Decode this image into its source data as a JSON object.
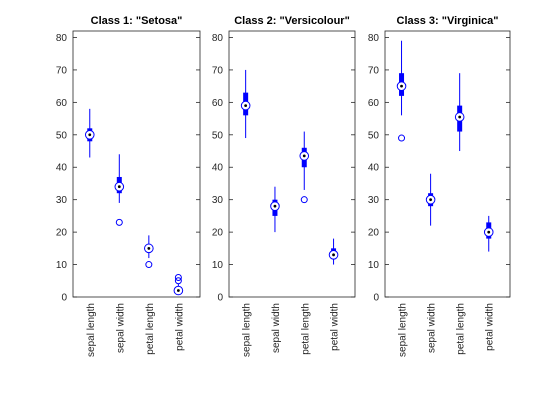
{
  "chart_data": [
    {
      "type": "box",
      "title": "Class 1: \"Setosa\"",
      "categories": [
        "sepal length",
        "sepal width",
        "petal length",
        "petal width"
      ],
      "ylim": [
        0,
        82
      ],
      "yticks": [
        0,
        10,
        20,
        30,
        40,
        50,
        60,
        70,
        80
      ],
      "grid": false,
      "boxes": [
        {
          "median": 50,
          "q1": 48,
          "q3": 52,
          "whisker_low": 43,
          "whisker_high": 58,
          "outliers": []
        },
        {
          "median": 34,
          "q1": 32,
          "q3": 37,
          "whisker_low": 29,
          "whisker_high": 44,
          "outliers": [
            23
          ]
        },
        {
          "median": 15,
          "q1": 14,
          "q3": 16,
          "whisker_low": 12,
          "whisker_high": 19,
          "outliers": [
            10
          ]
        },
        {
          "median": 2,
          "q1": 2,
          "q3": 3,
          "whisker_low": 1,
          "whisker_high": 4,
          "outliers": [
            5,
            6
          ]
        }
      ]
    },
    {
      "type": "box",
      "title": "Class 2: \"Versicolour\"",
      "categories": [
        "sepal length",
        "sepal width",
        "petal length",
        "petal width"
      ],
      "ylim": [
        0,
        82
      ],
      "yticks": [
        0,
        10,
        20,
        30,
        40,
        50,
        60,
        70,
        80
      ],
      "grid": false,
      "boxes": [
        {
          "median": 59,
          "q1": 56,
          "q3": 63,
          "whisker_low": 49,
          "whisker_high": 70,
          "outliers": []
        },
        {
          "median": 28,
          "q1": 25,
          "q3": 30,
          "whisker_low": 20,
          "whisker_high": 34,
          "outliers": []
        },
        {
          "median": 43.5,
          "q1": 40,
          "q3": 46,
          "whisker_low": 33,
          "whisker_high": 51,
          "outliers": [
            30
          ]
        },
        {
          "median": 13,
          "q1": 12,
          "q3": 15,
          "whisker_low": 10,
          "whisker_high": 18,
          "outliers": []
        }
      ]
    },
    {
      "type": "box",
      "title": "Class 3: \"Virginica\"",
      "categories": [
        "sepal length",
        "sepal width",
        "petal length",
        "petal width"
      ],
      "ylim": [
        0,
        82
      ],
      "yticks": [
        0,
        10,
        20,
        30,
        40,
        50,
        60,
        70,
        80
      ],
      "grid": false,
      "boxes": [
        {
          "median": 65,
          "q1": 62,
          "q3": 69,
          "whisker_low": 56,
          "whisker_high": 79,
          "outliers": [
            49
          ]
        },
        {
          "median": 30,
          "q1": 28,
          "q3": 32,
          "whisker_low": 22,
          "whisker_high": 38,
          "outliers": []
        },
        {
          "median": 55.5,
          "q1": 51,
          "q3": 59,
          "whisker_low": 45,
          "whisker_high": 69,
          "outliers": []
        },
        {
          "median": 20,
          "q1": 18,
          "q3": 23,
          "whisker_low": 14,
          "whisker_high": 25,
          "outliers": []
        }
      ]
    }
  ],
  "style": {
    "series_color": "#0000ff",
    "axis_color": "#262626"
  }
}
